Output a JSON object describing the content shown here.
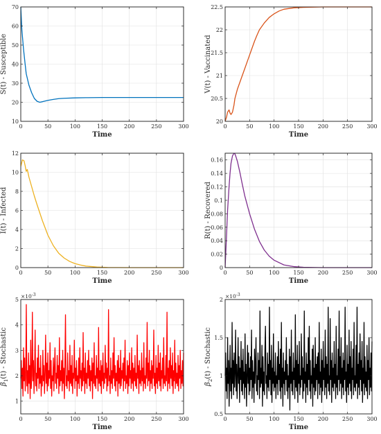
{
  "chart_data": [
    {
      "type": "line",
      "xlabel": "Time",
      "ylabel": "S(t) - Susceptible",
      "xlim": [
        0,
        300
      ],
      "ylim": [
        10,
        70
      ],
      "xticks": [
        0,
        50,
        100,
        150,
        200,
        250,
        300
      ],
      "yticks": [
        10,
        20,
        30,
        40,
        50,
        60,
        70
      ],
      "grid": true,
      "color": "#0072BD",
      "series": [
        {
          "x": [
            0,
            2,
            5,
            8,
            10,
            15,
            20,
            25,
            30,
            35,
            40,
            50,
            60,
            70,
            80,
            100,
            120,
            150,
            200,
            250,
            300
          ],
          "y": [
            70,
            58,
            48,
            40,
            35,
            29,
            25,
            22,
            20.5,
            20,
            20.3,
            21,
            21.5,
            21.9,
            22.1,
            22.3,
            22.4,
            22.5,
            22.5,
            22.5,
            22.5
          ]
        }
      ]
    },
    {
      "type": "line",
      "xlabel": "Time",
      "ylabel": "V(t) - Vaccinated",
      "xlim": [
        0,
        300
      ],
      "ylim": [
        20,
        22.5
      ],
      "xticks": [
        0,
        50,
        100,
        150,
        200,
        250,
        300
      ],
      "yticks": [
        20,
        20.5,
        21,
        21.5,
        22,
        22.5
      ],
      "grid": true,
      "color": "#D95319",
      "series": [
        {
          "x": [
            0,
            3,
            5,
            8,
            10,
            12,
            15,
            18,
            20,
            25,
            30,
            35,
            40,
            45,
            50,
            55,
            60,
            65,
            70,
            80,
            90,
            100,
            110,
            120,
            140,
            160,
            200,
            250,
            300
          ],
          "y": [
            20,
            20.1,
            20.2,
            20.25,
            20.18,
            20.15,
            20.2,
            20.35,
            20.5,
            20.7,
            20.85,
            21.0,
            21.15,
            21.3,
            21.45,
            21.6,
            21.75,
            21.88,
            22.0,
            22.15,
            22.27,
            22.35,
            22.41,
            22.45,
            22.48,
            22.49,
            22.5,
            22.5,
            22.5
          ]
        }
      ]
    },
    {
      "type": "line",
      "xlabel": "Time",
      "ylabel": "I(t) - Infected",
      "xlim": [
        0,
        300
      ],
      "ylim": [
        0,
        12
      ],
      "xticks": [
        0,
        50,
        100,
        150,
        200,
        250,
        300
      ],
      "yticks": [
        0,
        2,
        4,
        6,
        8,
        10,
        12
      ],
      "grid": true,
      "color": "#EDB120",
      "series": [
        {
          "x": [
            0,
            3,
            6,
            8,
            10,
            12,
            15,
            20,
            25,
            30,
            40,
            50,
            60,
            70,
            80,
            90,
            100,
            110,
            120,
            140,
            160,
            200,
            250,
            300
          ],
          "y": [
            10.6,
            11.3,
            11.2,
            10.7,
            10.1,
            10.3,
            9.5,
            8.5,
            7.5,
            6.6,
            4.9,
            3.4,
            2.3,
            1.5,
            1.0,
            0.65,
            0.42,
            0.27,
            0.16,
            0.06,
            0.02,
            0,
            0,
            0
          ]
        }
      ]
    },
    {
      "type": "line",
      "xlabel": "Time",
      "ylabel": "R(t) - Recovered",
      "xlim": [
        0,
        300
      ],
      "ylim": [
        0,
        0.17
      ],
      "xticks": [
        0,
        50,
        100,
        150,
        200,
        250,
        300
      ],
      "yticks": [
        0,
        0.02,
        0.04,
        0.06,
        0.08,
        0.1,
        0.12,
        0.14,
        0.16
      ],
      "grid": true,
      "color": "#7E2F8E",
      "series": [
        {
          "x": [
            0,
            3,
            5,
            8,
            10,
            12,
            15,
            18,
            20,
            22,
            25,
            30,
            35,
            40,
            50,
            60,
            70,
            80,
            90,
            100,
            120,
            140,
            160,
            200,
            250,
            300
          ],
          "y": [
            0,
            0.05,
            0.085,
            0.12,
            0.14,
            0.155,
            0.166,
            0.17,
            0.169,
            0.165,
            0.158,
            0.142,
            0.124,
            0.107,
            0.08,
            0.057,
            0.039,
            0.026,
            0.017,
            0.011,
            0.004,
            0.0015,
            0.0005,
            0,
            0,
            0
          ]
        }
      ]
    },
    {
      "type": "line",
      "xlabel": "Time",
      "ylabel_base": "β",
      "ylabel_sub": "1",
      "ylabel_rest": "(t) - Stochastic",
      "exponent": "10",
      "exponent_power": "-3",
      "xlim": [
        0,
        300
      ],
      "ylim": [
        0.5,
        5
      ],
      "xticks": [
        0,
        50,
        100,
        150,
        200,
        250,
        300
      ],
      "yticks": [
        1,
        2,
        3,
        4,
        5
      ],
      "grid": true,
      "color": "#FF0000",
      "series": [
        {
          "x_start": 0,
          "x_end": 300,
          "y": [
            1.9,
            2.6,
            1.5,
            2.3,
            1.2,
            3.1,
            1.8,
            2.7,
            1.4,
            1.9,
            4.8,
            1.6,
            2.2,
            1.3,
            2.9,
            1.7,
            2.4,
            1.1,
            3.4,
            1.5,
            2.0,
            4.5,
            1.8,
            2.6,
            1.3,
            2.2,
            3.8,
            1.6,
            2.1,
            1.4,
            2.7,
            1.9,
            3.2,
            1.5,
            2.3,
            1.7,
            2.8,
            1.2,
            2.0,
            1.6,
            3.0,
            1.8,
            2.4,
            1.3,
            2.1,
            3.6,
            1.7,
            2.5,
            1.4,
            2.9,
            1.6,
            2.2,
            1.9,
            3.3,
            1.5,
            2.6,
            1.2,
            2.0,
            1.8,
            2.7,
            1.4,
            2.3,
            3.1,
            1.7,
            2.1,
            1.5,
            2.8,
            1.9,
            2.4,
            1.3,
            3.5,
            1.6,
            2.2,
            1.8,
            2.6,
            1.4,
            3.0,
            1.7,
            2.3,
            1.1,
            2.5,
            4.4,
            1.6,
            2.0,
            1.5,
            2.9,
            1.8,
            2.2,
            1.4,
            3.2,
            1.7,
            2.4,
            1.6,
            2.8,
            1.3,
            2.1,
            1.9,
            3.4,
            1.5,
            2.3,
            1.8,
            2.6,
            1.2,
            2.0,
            1.7,
            2.7,
            1.5,
            3.1,
            1.9,
            2.2,
            1.4,
            2.5,
            1.6,
            3.7,
            1.8,
            2.3,
            1.3,
            2.9,
            1.7,
            2.1,
            1.5,
            2.6,
            1.9,
            3.0,
            1.6,
            2.4,
            1.4,
            2.2,
            1.8,
            2.7,
            1.1,
            2.5,
            1.7,
            3.3,
            1.6,
            2.0,
            1.5,
            2.8,
            1.9,
            2.3,
            1.4,
            3.9,
            1.7,
            2.2,
            1.6,
            2.6,
            1.3,
            2.4,
            1.8,
            2.9,
            1.5,
            2.1,
            1.7,
            3.2,
            1.9,
            2.5,
            1.4,
            2.3,
            1.6,
            4.6,
            1.8,
            2.0,
            1.3,
            2.7,
            1.7,
            2.2,
            1.5,
            2.9,
            1.9,
            3.5,
            1.6,
            2.4,
            1.4,
            2.1,
            1.8,
            2.6,
            1.2,
            2.8,
            1.7,
            2.3,
            1.5,
            3.0,
            1.6,
            2.2,
            1.9,
            2.5,
            1.4,
            2.7,
            1.8,
            3.4,
            1.5,
            2.0,
            1.7,
            2.6,
            1.3,
            2.4,
            1.6,
            2.9,
            1.9,
            2.2,
            1.5,
            3.1,
            1.7,
            2.5,
            1.4,
            2.3,
            1.8,
            2.8,
            1.6,
            2.1,
            1.5,
            3.6,
            1.9,
            2.4,
            1.3,
            2.6,
            1.7,
            2.2,
            1.6,
            2.9,
            1.8,
            2.3,
            1.4,
            3.3,
            1.7,
            2.0,
            1.5,
            2.7,
            1.9,
            4.1,
            1.6,
            2.5,
            1.8,
            3.0,
            1.4,
            2.2,
            1.7,
            2.6,
            1.5,
            2.4,
            1.9,
            3.8,
            1.6,
            2.1,
            1.3,
            2.8,
            1.7,
            2.3,
            1.5,
            3.2,
            1.8,
            2.5,
            1.6,
            2.9,
            1.4,
            2.2,
            1.9,
            2.7,
            1.5,
            3.5,
            1.7,
            2.0,
            1.6,
            2.8,
            1.8,
            4.5,
            1.4,
            2.3,
            1.7,
            2.6,
            1.5,
            3.1,
            1.9,
            2.4,
            1.6,
            2.9,
            1.3,
            2.2,
            1.8,
            3.4,
            1.5,
            2.5,
            1.7,
            2.1,
            1.6,
            2.8,
            1.4,
            2.4,
            1.9,
            3.0,
            1.5,
            2.2,
            1.7,
            2.6,
            1.6,
            2.9
          ]
        }
      ]
    },
    {
      "type": "line",
      "xlabel": "Time",
      "ylabel_base": "β",
      "ylabel_sub": "2",
      "ylabel_rest": "(t) - Stochastic",
      "exponent": "10",
      "exponent_power": "-3",
      "xlim": [
        0,
        300
      ],
      "ylim": [
        0.5,
        2
      ],
      "xticks": [
        0,
        50,
        100,
        150,
        200,
        250,
        300
      ],
      "yticks": [
        0.5,
        1,
        1.5,
        2
      ],
      "grid": true,
      "color": "#000000",
      "series": [
        {
          "x_start": 0,
          "x_end": 300,
          "y": [
            1.0,
            1.3,
            0.8,
            1.1,
            0.7,
            1.5,
            0.9,
            1.2,
            0.6,
            1.0,
            1.4,
            0.8,
            1.1,
            0.7,
            1.7,
            0.9,
            1.2,
            0.75,
            1.3,
            0.85,
            1.05,
            1.6,
            0.8,
            1.15,
            0.7,
            1.0,
            1.5,
            0.9,
            1.25,
            0.65,
            1.1,
            0.95,
            1.45,
            0.8,
            1.2,
            0.75,
            1.35,
            0.9,
            1.05,
            0.7,
            1.55,
            0.85,
            1.15,
            0.6,
            1.0,
            1.4,
            0.9,
            1.3,
            0.75,
            1.1,
            0.8,
            1.25,
            0.95,
            1.6,
            0.7,
            1.2,
            0.85,
            1.05,
            0.65,
            1.35,
            0.9,
            1.15,
            1.5,
            0.8,
            1.0,
            0.75,
            1.3,
            0.95,
            1.2,
            0.7,
            1.85,
            0.85,
            1.1,
            0.9,
            1.4,
            0.6,
            1.25,
            0.8,
            1.05,
            0.75,
            1.35,
            1.65,
            0.9,
            1.0,
            0.7,
            1.3,
            0.85,
            1.15,
            0.8,
            1.9,
            0.95,
            1.2,
            0.75,
            1.4,
            0.65,
            1.1,
            0.9,
            1.55,
            0.8,
            1.05,
            0.85,
            1.3,
            0.7,
            1.0,
            0.9,
            1.25,
            0.75,
            1.45,
            0.95,
            1.15,
            0.8,
            1.35,
            0.7,
            1.7,
            0.85,
            1.1,
            0.6,
            1.3,
            0.9,
            1.05,
            0.75,
            1.2,
            0.95,
            1.5,
            0.8,
            1.15,
            0.7,
            1.0,
            0.85,
            1.35,
            0.55,
            1.25,
            0.9,
            1.6,
            0.8,
            1.05,
            0.75,
            1.3,
            0.95,
            1.1,
            0.7,
            1.8,
            0.85,
            1.2,
            0.8,
            1.4,
            0.65,
            1.15,
            0.9,
            1.45,
            0.75,
            1.0,
            0.85,
            1.55,
            0.95,
            1.25,
            0.7,
            1.1,
            0.8,
            1.85,
            0.9,
            1.05,
            0.65,
            1.3,
            0.85,
            1.15,
            0.75,
            1.5,
            0.95,
            1.65,
            0.8,
            1.2,
            0.7,
            1.0,
            0.9,
            1.35,
            0.6,
            1.4,
            0.85,
            1.1,
            0.75,
            1.5,
            0.8,
            1.15,
            0.95,
            1.25,
            0.7,
            1.3,
            0.9,
            1.7,
            0.75,
            1.05,
            0.85,
            1.35,
            0.65,
            1.2,
            0.8,
            1.45,
            0.95,
            1.1,
            0.75,
            1.6,
            0.85,
            1.25,
            0.7,
            1.15,
            0.9,
            1.9,
            0.8,
            1.0,
            0.75,
            1.75,
            0.95,
            1.2,
            0.65,
            1.3,
            0.85,
            1.1,
            0.8,
            1.45,
            0.9,
            1.15,
            0.7,
            1.65,
            0.85,
            1.0,
            0.75,
            1.35,
            0.95,
            1.85,
            0.8,
            1.25,
            0.9,
            1.5,
            0.7,
            1.1,
            0.85,
            1.3,
            0.75,
            1.2,
            0.95,
            1.9,
            0.8,
            1.05,
            0.65,
            1.4,
            0.85,
            1.15,
            0.75,
            1.6,
            0.9,
            1.25,
            0.8,
            1.45,
            0.7,
            1.1,
            0.95,
            1.35,
            0.75,
            1.7,
            0.85,
            1.0,
            0.8,
            1.4,
            0.9,
            1.9,
            0.7,
            1.15,
            0.85,
            1.3,
            0.75,
            1.55,
            0.95,
            1.2,
            0.8,
            1.45,
            0.65,
            1.1,
            0.9,
            1.7,
            0.75,
            1.25,
            0.85,
            1.05,
            0.8,
            1.4,
            0.7,
            1.2,
            0.95,
            1.5,
            0.75,
            1.1,
            0.85,
            1.3,
            0.8,
            1.45
          ]
        }
      ]
    }
  ]
}
